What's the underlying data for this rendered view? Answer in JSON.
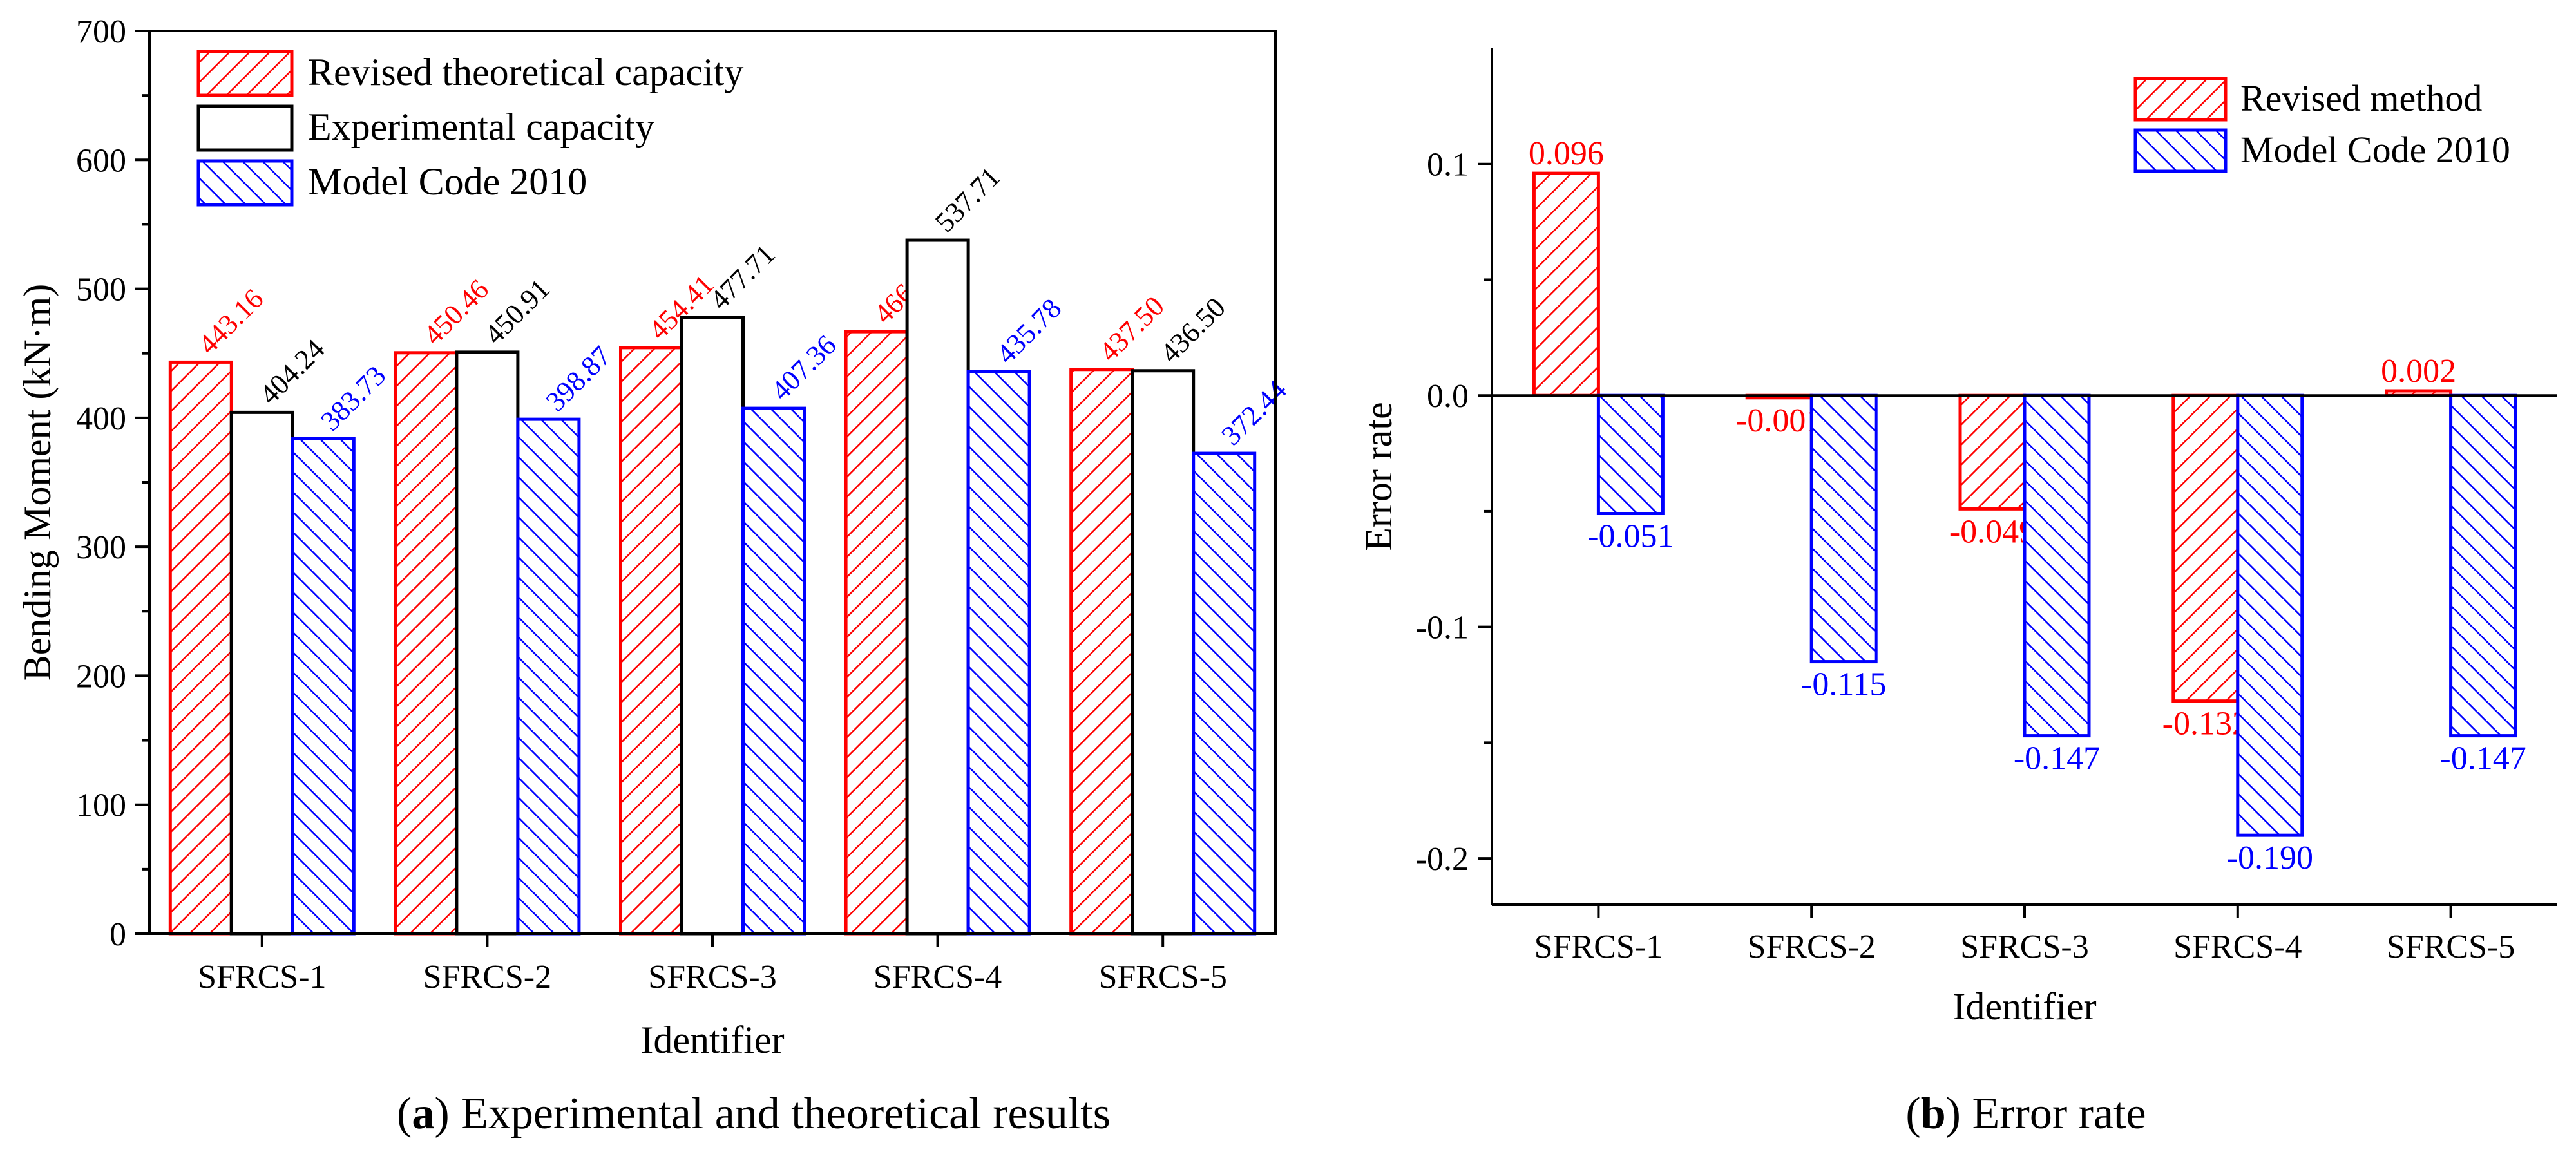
{
  "chart_data": [
    {
      "type": "bar",
      "caption_letter": "a",
      "caption_text": ") Experimental and theoretical results",
      "categories": [
        "SFRCS-1",
        "SFRCS-2",
        "SFRCS-3",
        "SFRCS-4",
        "SFRCS-5"
      ],
      "series": [
        {
          "name": "Revised theoretical capacity",
          "values": [
            443.16,
            450.46,
            454.41,
            466.76,
            437.5
          ],
          "labels": [
            "443.16",
            "450.46",
            "454.41",
            "466.76",
            "437.50"
          ],
          "color": "#ff0000",
          "pattern": "hatch-up"
        },
        {
          "name": "Experimental capacity",
          "values": [
            404.24,
            450.91,
            477.71,
            537.71,
            436.5
          ],
          "labels": [
            "404.24",
            "450.91",
            "477.71",
            "537.71",
            "436.50"
          ],
          "color": "#000000",
          "pattern": "none"
        },
        {
          "name": "Model Code 2010",
          "values": [
            383.73,
            398.87,
            407.36,
            435.78,
            372.44
          ],
          "labels": [
            "383.73",
            "398.87",
            "407.36",
            "435.78",
            "372.44"
          ],
          "color": "#0000ff",
          "pattern": "hatch-down"
        }
      ],
      "xlabel": "Identifier",
      "ylabel": "Bending Moment (kN·m)",
      "ylim": [
        0,
        700
      ],
      "yticks": [
        0,
        100,
        200,
        300,
        400,
        500,
        600,
        700
      ],
      "legend_position": "top-left",
      "grid": false
    },
    {
      "type": "bar",
      "caption_letter": "b",
      "caption_text": ") Error rate",
      "categories": [
        "SFRCS-1",
        "SFRCS-2",
        "SFRCS-3",
        "SFRCS-4",
        "SFRCS-5"
      ],
      "series": [
        {
          "name": "Revised method",
          "values": [
            0.096,
            -0.001,
            -0.049,
            -0.132,
            0.002
          ],
          "labels": [
            "0.096",
            "-0.001",
            "-0.049",
            "-0.132",
            "0.002"
          ],
          "color": "#ff0000",
          "pattern": "hatch-up"
        },
        {
          "name": "Model Code 2010",
          "values": [
            -0.051,
            -0.115,
            -0.147,
            -0.19,
            -0.147
          ],
          "labels": [
            "-0.051",
            "-0.115",
            "-0.147",
            "-0.190",
            "-0.147"
          ],
          "color": "#0000ff",
          "pattern": "hatch-down"
        }
      ],
      "xlabel": "Identifier",
      "ylabel": "Error rate",
      "ylim": [
        -0.22,
        0.15
      ],
      "yticks": [
        -0.2,
        -0.1,
        0.0,
        0.1
      ],
      "ytick_labels": [
        "-0.2",
        "-0.1",
        "0.0",
        "0.1"
      ],
      "legend_position": "top-right",
      "grid": false
    }
  ]
}
